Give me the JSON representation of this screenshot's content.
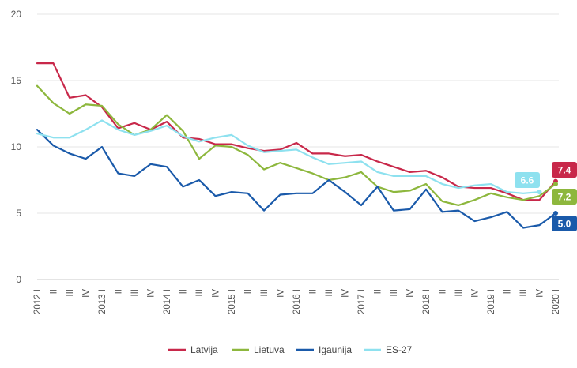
{
  "chart_data": {
    "type": "line",
    "title": "",
    "xlabel": "",
    "ylabel": "",
    "ylim": [
      0,
      20
    ],
    "yticks": [
      0,
      5,
      10,
      15,
      20
    ],
    "grid": true,
    "legend_position": "bottom",
    "x": [
      "2012 I",
      "II",
      "III",
      "IV",
      "2013 I",
      "II",
      "III",
      "IV",
      "2014 I",
      "II",
      "III",
      "IV",
      "2015 I",
      "II",
      "III",
      "IV",
      "2016 I",
      "II",
      "III",
      "IV",
      "2017 I",
      "II",
      "III",
      "IV",
      "2018 I",
      "II",
      "III",
      "IV",
      "2019 I",
      "II",
      "III",
      "IV",
      "2020 I"
    ],
    "series": [
      {
        "name": "Latvija",
        "color": "#c8284a",
        "values": [
          16.3,
          16.3,
          13.7,
          13.9,
          13.0,
          11.4,
          11.8,
          11.3,
          11.9,
          10.7,
          10.6,
          10.2,
          10.2,
          9.9,
          9.7,
          9.8,
          10.3,
          9.5,
          9.5,
          9.3,
          9.4,
          8.9,
          8.5,
          8.1,
          8.2,
          7.7,
          7.0,
          6.9,
          6.9,
          6.5,
          6.0,
          6.0,
          7.4
        ],
        "end_label": "7.4"
      },
      {
        "name": "Lietuva",
        "color": "#8db73d",
        "values": [
          14.6,
          13.3,
          12.5,
          13.2,
          13.1,
          11.7,
          10.9,
          11.3,
          12.4,
          11.2,
          9.1,
          10.1,
          10.0,
          9.4,
          8.3,
          8.8,
          8.4,
          8.0,
          7.5,
          7.7,
          8.1,
          7.0,
          6.6,
          6.7,
          7.2,
          5.9,
          5.6,
          6.0,
          6.5,
          6.2,
          6.0,
          6.3,
          7.2
        ],
        "end_label": "7.2"
      },
      {
        "name": "Igaunija",
        "color": "#1a5aaa",
        "values": [
          11.3,
          10.1,
          9.5,
          9.1,
          10.0,
          8.0,
          7.8,
          8.7,
          8.5,
          7.0,
          7.5,
          6.3,
          6.6,
          6.5,
          5.2,
          6.4,
          6.5,
          6.5,
          7.5,
          6.6,
          5.6,
          7.0,
          5.2,
          5.3,
          6.8,
          5.1,
          5.2,
          4.4,
          4.7,
          5.1,
          3.9,
          4.1,
          5.0
        ],
        "end_label": "5.0"
      },
      {
        "name": "ES-27",
        "color": "#8ee1ef",
        "values": [
          11.0,
          10.7,
          10.7,
          11.3,
          12.0,
          11.3,
          10.9,
          11.2,
          11.6,
          10.8,
          10.4,
          10.7,
          10.9,
          10.1,
          9.6,
          9.7,
          9.8,
          9.2,
          8.7,
          8.8,
          8.9,
          8.1,
          7.8,
          7.8,
          7.8,
          7.2,
          6.9,
          7.1,
          7.2,
          6.6,
          6.5,
          6.6,
          null
        ],
        "end_label": "6.6"
      }
    ]
  }
}
